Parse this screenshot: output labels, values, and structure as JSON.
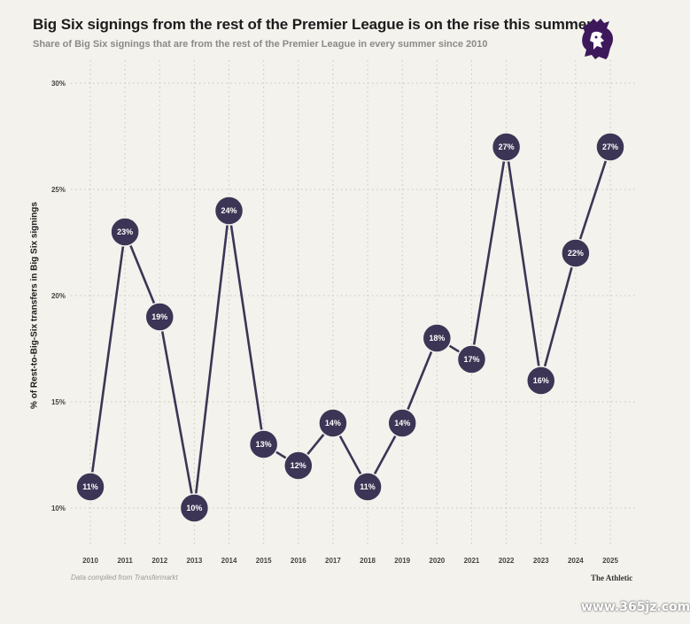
{
  "header": {
    "title": "Big Six signings from the rest of the Premier League is on the rise this summer",
    "subtitle": "Share of Big Six signings that are from the rest of the Premier League in every summer since 2010"
  },
  "footer": {
    "source": "Data compiled from Transfermarkt",
    "brand": "The Athletic",
    "watermark": "www.365jz.com"
  },
  "colors": {
    "background": "#f3f2ec",
    "marker": "#3d3555",
    "line": "#3d3555",
    "grid": "#c8c6bd",
    "logo": "#3d195b"
  },
  "chart_data": {
    "type": "line",
    "ylabel": "% of Rest-to-Big-Six transfers in Big Six signings",
    "xlabel": "",
    "x": [
      "2010",
      "2011",
      "2012",
      "2013",
      "2014",
      "2015",
      "2016",
      "2017",
      "2018",
      "2019",
      "2020",
      "2021",
      "2022",
      "2023",
      "2024",
      "2025"
    ],
    "series": [
      {
        "values": [
          11,
          23,
          19,
          10,
          24,
          13,
          12,
          14,
          11,
          14,
          18,
          17,
          27,
          16,
          22,
          27
        ]
      }
    ],
    "data_labels": [
      "11%",
      "23%",
      "19%",
      "10%",
      "24%",
      "13%",
      "12%",
      "14%",
      "11%",
      "14%",
      "18%",
      "17%",
      "27%",
      "16%",
      "22%",
      "27%"
    ],
    "yticks": [
      10,
      15,
      20,
      25,
      30
    ],
    "ytick_labels": [
      "10%",
      "15%",
      "20%",
      "25%",
      "30%"
    ],
    "ylim": [
      8,
      30
    ],
    "grid": true
  }
}
